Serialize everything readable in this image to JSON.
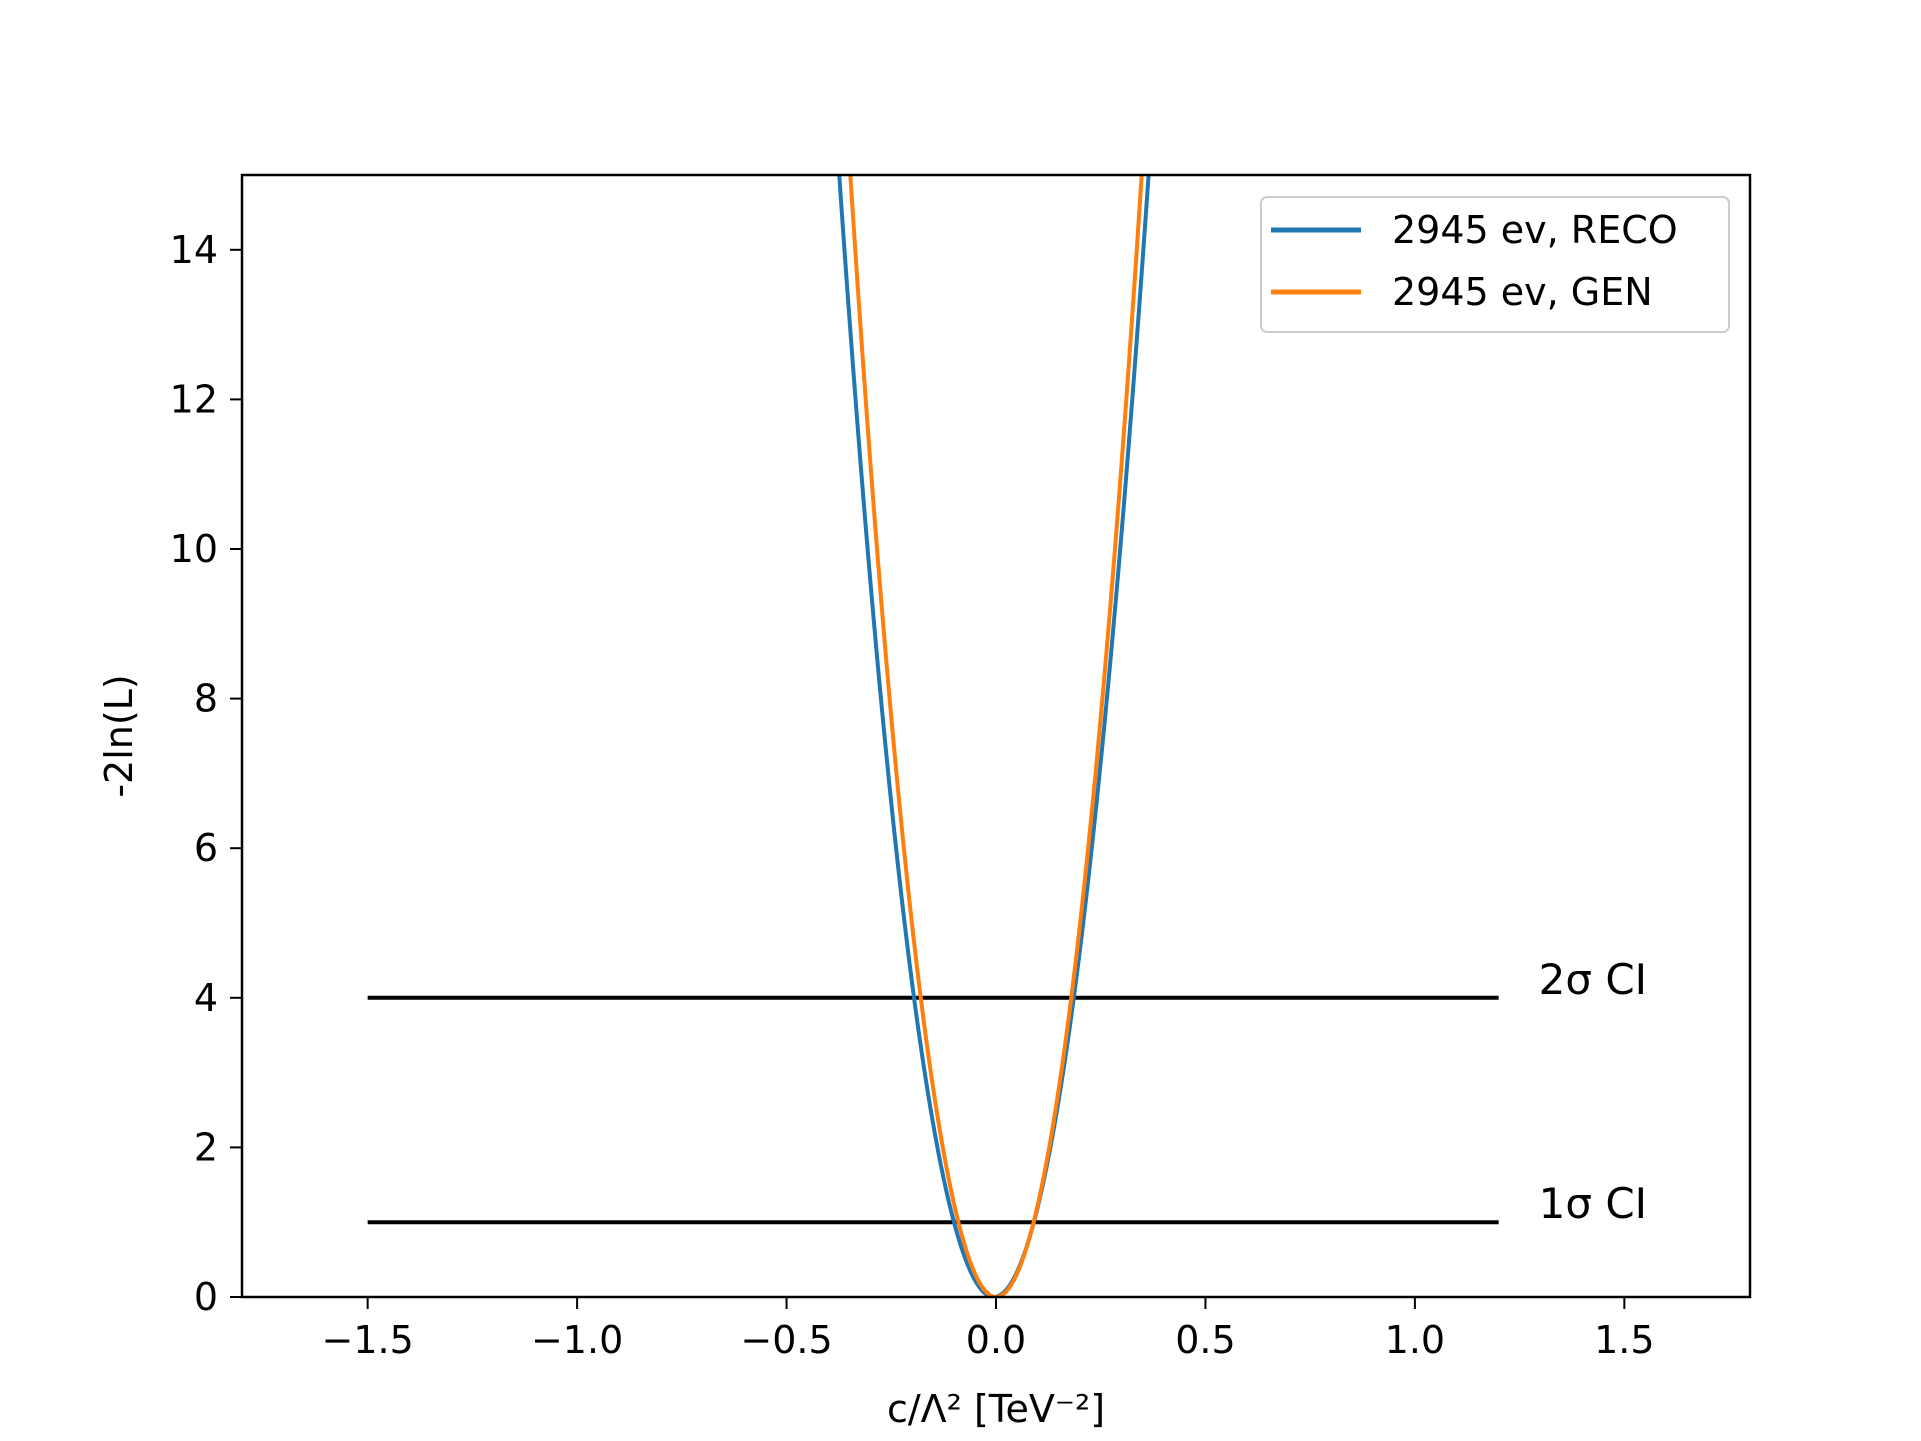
{
  "chart_data": {
    "type": "line",
    "title": "",
    "xlabel": "c/Λ² [TeV⁻²]",
    "ylabel": "-2ln(L)",
    "xlim": [
      -1.8,
      1.8
    ],
    "ylim": [
      0,
      15
    ],
    "x_ticks": [
      -1.5,
      -1.0,
      -0.5,
      0.0,
      0.5,
      1.0,
      1.5
    ],
    "x_tick_labels": [
      "−1.5",
      "−1.0",
      "−0.5",
      "0.0",
      "0.5",
      "1.0",
      "1.5"
    ],
    "y_ticks": [
      0,
      2,
      4,
      6,
      8,
      10,
      12,
      14
    ],
    "y_tick_labels": [
      "0",
      "2",
      "4",
      "6",
      "8",
      "10",
      "12",
      "14"
    ],
    "grid": false,
    "legend_position": "top-right",
    "series": [
      {
        "name": "2945 ev, RECO",
        "color": "#1f77b4",
        "model": "quadratic",
        "x_min": -0.005,
        "curvature": 110,
        "x_range": [
          -0.4,
          0.4
        ]
      },
      {
        "name": "2945 ev, GEN",
        "color": "#ff7f0e",
        "model": "quadratic",
        "x_min": 0.0,
        "curvature": 124,
        "x_range": [
          -0.4,
          0.4
        ]
      }
    ],
    "reference_lines": [
      {
        "y": 4,
        "x_range": [
          -1.5,
          1.2
        ],
        "color": "#000000",
        "label": "2σ CI"
      },
      {
        "y": 1,
        "x_range": [
          -1.5,
          1.2
        ],
        "color": "#000000",
        "label": "1σ CI"
      }
    ]
  }
}
